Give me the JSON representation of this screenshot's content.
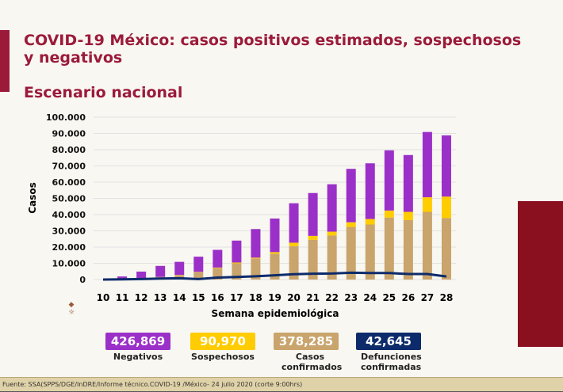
{
  "header": {
    "title": "COVID-19 México: casos positivos estimados, sospechosos y negativos",
    "subtitle": "Escenario nacional"
  },
  "chart_data": {
    "type": "bar",
    "stacked": true,
    "xlabel": "Semana epidemiológica",
    "ylabel": "Casos",
    "ylim": [
      0,
      100000
    ],
    "yticks": [
      "0",
      "10.000",
      "20.000",
      "30.000",
      "40.000",
      "50.000",
      "60.000",
      "70.000",
      "80.000",
      "90.000",
      "100.000"
    ],
    "categories": [
      "10",
      "11",
      "12",
      "13",
      "14",
      "15",
      "16",
      "17",
      "18",
      "19",
      "20",
      "21",
      "22",
      "23",
      "24",
      "25",
      "26",
      "27",
      "28"
    ],
    "grid": true,
    "series": [
      {
        "name": "Casos confirmados",
        "color": "#c9a46c",
        "values": [
          0,
          200,
          600,
          1500,
          2800,
          4500,
          7100,
          10000,
          13000,
          15900,
          20600,
          24500,
          27100,
          32400,
          33900,
          38200,
          36600,
          41700,
          37900
        ]
      },
      {
        "name": "Sospechosos",
        "color": "#ffcc00",
        "values": [
          0,
          0,
          0,
          100,
          100,
          200,
          300,
          500,
          500,
          1000,
          2100,
          2400,
          2400,
          2900,
          3400,
          4300,
          5100,
          9000,
          13200
        ]
      },
      {
        "name": "Negativos",
        "color": "#9b30c8",
        "values": [
          0,
          1700,
          4300,
          6800,
          8000,
          9400,
          10900,
          13500,
          17600,
          20700,
          24300,
          26400,
          29200,
          32900,
          34300,
          37100,
          35000,
          40200,
          37700
        ]
      },
      {
        "name": "Defunciones confirmadas",
        "type": "line",
        "color": "#0d2b6b",
        "values": [
          0,
          100,
          300,
          600,
          800,
          300,
          1200,
          1600,
          2000,
          2600,
          3300,
          3600,
          3700,
          4200,
          4000,
          4000,
          3400,
          3400,
          1900
        ]
      }
    ]
  },
  "totals": [
    {
      "value": "426,869",
      "label": "Negativos",
      "color": "#9b30c8"
    },
    {
      "value": "90,970",
      "label": "Sospechosos",
      "color": "#ffcc00"
    },
    {
      "value": "378,285",
      "label": "Casos confirmados",
      "color": "#c9a46c"
    },
    {
      "value": "42,645",
      "label": "Defunciones confirmadas",
      "color": "#0d2b6b"
    }
  ],
  "footer": "Fuente: SSA(SPPS/DGE/InDRE/Informe técnico.COVID-19 /México- 24 julio 2020 (corte 9:00hrs)"
}
